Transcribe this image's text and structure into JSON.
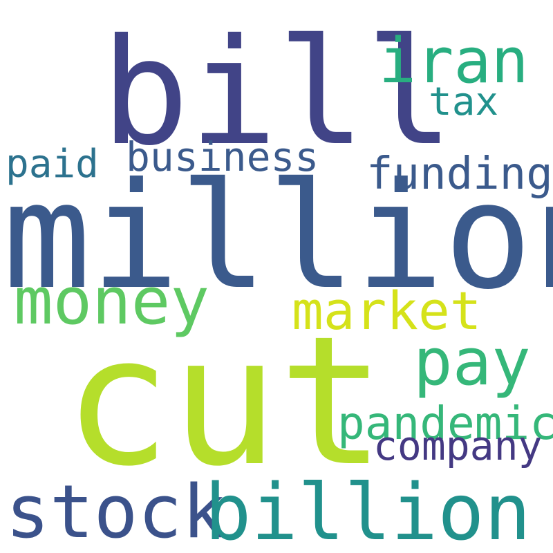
{
  "words": [
    {
      "id": "bill",
      "text": "bill",
      "color": "#414487"
    },
    {
      "id": "million",
      "text": "million",
      "color": "#3b5a8c"
    },
    {
      "id": "cut",
      "text": "cut",
      "color": "#b5de2b"
    },
    {
      "id": "iran",
      "text": "iran",
      "color": "#28ae80"
    },
    {
      "id": "tax",
      "text": "tax",
      "color": "#21918c"
    },
    {
      "id": "paid",
      "text": "paid",
      "color": "#2c728e"
    },
    {
      "id": "business",
      "text": "business",
      "color": "#3b5a8c"
    },
    {
      "id": "funding",
      "text": "funding",
      "color": "#3b5a8c"
    },
    {
      "id": "money",
      "text": "money",
      "color": "#5ec962"
    },
    {
      "id": "market",
      "text": "market",
      "color": "#d5e21a"
    },
    {
      "id": "pay",
      "text": "pay",
      "color": "#35b779"
    },
    {
      "id": "pandemic",
      "text": "pandemic",
      "color": "#35b779"
    },
    {
      "id": "company",
      "text": "company",
      "color": "#443983"
    },
    {
      "id": "stock",
      "text": "stock",
      "color": "#3b528b"
    },
    {
      "id": "billion",
      "text": "billion",
      "color": "#21918c"
    }
  ]
}
